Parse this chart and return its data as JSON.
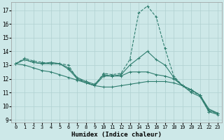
{
  "title": "",
  "xlabel": "Humidex (Indice chaleur)",
  "xlim": [
    -0.5,
    23.5
  ],
  "ylim": [
    8.8,
    17.6
  ],
  "yticks": [
    9,
    10,
    11,
    12,
    13,
    14,
    15,
    16,
    17
  ],
  "xticks": [
    0,
    1,
    2,
    3,
    4,
    5,
    6,
    7,
    8,
    9,
    10,
    11,
    12,
    13,
    14,
    15,
    16,
    17,
    18,
    19,
    20,
    21,
    22,
    23
  ],
  "bg_color": "#cde8e8",
  "grid_color": "#b0d0d0",
  "line_color": "#2e7d6e",
  "series": [
    [
      13.1,
      13.5,
      13.3,
      13.2,
      13.1,
      13.1,
      13.0,
      12.0,
      11.8,
      11.5,
      12.4,
      12.3,
      12.4,
      13.4,
      16.8,
      17.3,
      16.5,
      14.2,
      12.2,
      11.5,
      11.1,
      10.8,
      9.6,
      9.5
    ],
    [
      13.1,
      13.4,
      13.2,
      13.1,
      13.2,
      13.1,
      12.8,
      12.1,
      11.8,
      11.6,
      12.3,
      12.2,
      12.3,
      13.0,
      13.5,
      14.0,
      13.4,
      13.0,
      12.1,
      11.5,
      11.2,
      10.8,
      9.8,
      9.5
    ],
    [
      13.1,
      13.4,
      13.2,
      13.1,
      13.1,
      13.1,
      12.7,
      12.0,
      11.7,
      11.5,
      12.2,
      12.2,
      12.2,
      12.5,
      12.5,
      12.5,
      12.3,
      12.2,
      12.0,
      11.5,
      11.2,
      10.8,
      9.7,
      9.5
    ],
    [
      13.1,
      13.0,
      12.8,
      12.6,
      12.5,
      12.3,
      12.1,
      11.9,
      11.7,
      11.5,
      11.4,
      11.4,
      11.5,
      11.6,
      11.7,
      11.8,
      11.8,
      11.8,
      11.7,
      11.5,
      11.0,
      10.7,
      9.6,
      9.4
    ]
  ],
  "linestyles": [
    "--",
    "-",
    "-",
    "-"
  ]
}
